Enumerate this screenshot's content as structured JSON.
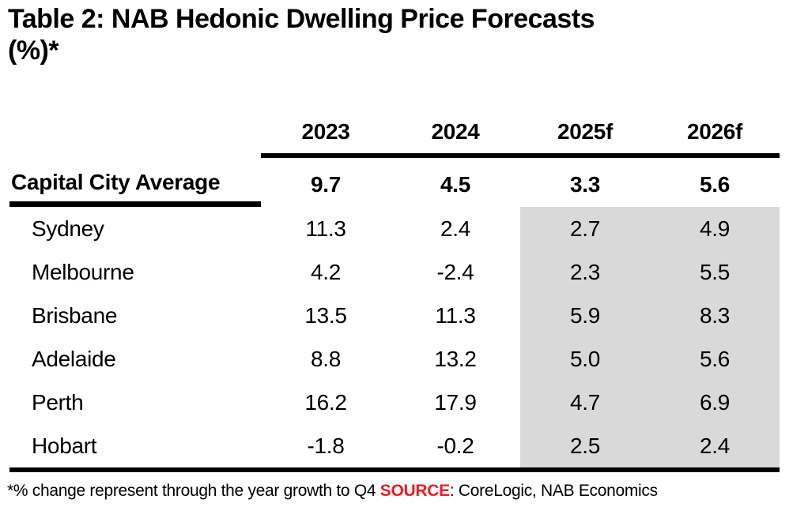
{
  "title": {
    "line1": "Table 2: NAB Hedonic Dwelling Price Forecasts",
    "line2": "(%)*"
  },
  "table": {
    "columns": [
      "2023",
      "2024",
      "2025f",
      "2026f"
    ],
    "summary_row": {
      "label": "Capital City Average",
      "values": [
        "9.7",
        "4.5",
        "3.3",
        "5.6"
      ]
    },
    "rows": [
      {
        "label": "Sydney",
        "values": [
          "11.3",
          "2.4",
          "2.7",
          "4.9"
        ]
      },
      {
        "label": "Melbourne",
        "values": [
          "4.2",
          "-2.4",
          "2.3",
          "5.5"
        ]
      },
      {
        "label": "Brisbane",
        "values": [
          "13.5",
          "11.3",
          "5.9",
          "8.3"
        ]
      },
      {
        "label": "Adelaide",
        "values": [
          "8.8",
          "13.2",
          "5.0",
          "5.6"
        ]
      },
      {
        "label": "Perth",
        "values": [
          "16.2",
          "17.9",
          "4.7",
          "6.9"
        ]
      },
      {
        "label": "Hobart",
        "values": [
          "-1.8",
          "-0.2",
          "2.5",
          "2.4"
        ]
      }
    ]
  },
  "footnote": {
    "text": "*% change represent through the year growth to Q4 ",
    "source_label": "SOURCE",
    "source_rest": ": CoreLogic, NAB Economics"
  },
  "colors": {
    "highlight_gray": "#d9d9d9",
    "source_red": "#ed1c24",
    "text_black": "#000000"
  },
  "chart_data": {
    "type": "table",
    "title": "Table 2: NAB Hedonic Dwelling Price Forecasts (%)*",
    "columns": [
      "2023",
      "2024",
      "2025f",
      "2026f"
    ],
    "rows": [
      {
        "label": "Capital City Average",
        "values": [
          9.7,
          4.5,
          3.3,
          5.6
        ]
      },
      {
        "label": "Sydney",
        "values": [
          11.3,
          2.4,
          2.7,
          4.9
        ]
      },
      {
        "label": "Melbourne",
        "values": [
          4.2,
          -2.4,
          2.3,
          5.5
        ]
      },
      {
        "label": "Brisbane",
        "values": [
          13.5,
          11.3,
          5.9,
          8.3
        ]
      },
      {
        "label": "Adelaide",
        "values": [
          8.8,
          13.2,
          5.0,
          5.6
        ]
      },
      {
        "label": "Perth",
        "values": [
          16.2,
          17.9,
          4.7,
          6.9
        ]
      },
      {
        "label": "Hobart",
        "values": [
          -1.8,
          -0.2,
          2.5,
          2.4
        ]
      }
    ],
    "highlighted_columns": [
      "2025f",
      "2026f"
    ],
    "note": "*% change represent through the year growth to Q4 SOURCE: CoreLogic, NAB Economics"
  }
}
